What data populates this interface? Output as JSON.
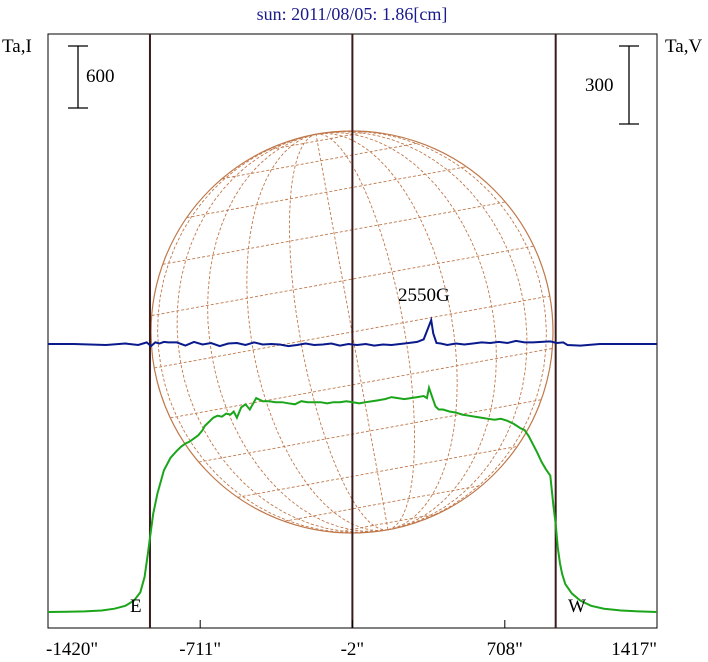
{
  "chart_data": {
    "type": "line",
    "title": "sun: 2011/08/05: 1.86[cm]",
    "left_axis_label": "Ta,I",
    "right_axis_label": "Ta,V",
    "x_unit": "arcsec",
    "x_range": [
      -1420,
      1417
    ],
    "x_ticks": [
      {
        "value": -1420,
        "label": "-1420\""
      },
      {
        "value": -711,
        "label": "-711\""
      },
      {
        "value": -2,
        "label": "-2\""
      },
      {
        "value": 708,
        "label": "708\""
      },
      {
        "value": 1417,
        "label": "1417\""
      }
    ],
    "limb_marks": [
      {
        "x": -945,
        "label": "E"
      },
      {
        "x": 945,
        "label": "W"
      }
    ],
    "center_line_x": -2,
    "scale_bars": [
      {
        "axis": "left",
        "label": "600",
        "value": 600
      },
      {
        "axis": "right",
        "label": "300",
        "value": 300
      }
    ],
    "annotations": [
      {
        "text": "2550G",
        "x": 365,
        "series": "V"
      }
    ],
    "colors": {
      "I": "#1aa51a",
      "V": "#0a1a8c",
      "limb_lines": "#3a1a1a",
      "grid": "#c0784a",
      "title": "#1a1a8c"
    },
    "series": [
      {
        "name": "I",
        "axis": "left",
        "x": [
          -1420,
          -1330,
          -1250,
          -1170,
          -1110,
          -1060,
          -1020,
          -990,
          -970,
          -955,
          -945,
          -930,
          -910,
          -880,
          -850,
          -820,
          -800,
          -780,
          -760,
          -740,
          -720,
          -700,
          -690,
          -670,
          -650,
          -630,
          -610,
          -590,
          -570,
          -555,
          -540,
          -520,
          -500,
          -480,
          -450,
          -420,
          -390,
          -360,
          -330,
          -300,
          -270,
          -240,
          -210,
          -180,
          -150,
          -120,
          -90,
          -60,
          -30,
          0,
          30,
          60,
          90,
          120,
          150,
          180,
          210,
          240,
          270,
          300,
          330,
          345,
          355,
          370,
          385,
          400,
          420,
          450,
          480,
          510,
          540,
          570,
          600,
          630,
          660,
          690,
          720,
          750,
          780,
          800,
          820,
          840,
          860,
          880,
          900,
          920,
          935,
          945,
          955,
          965,
          975,
          990,
          1020,
          1060,
          1110,
          1170,
          1250,
          1330,
          1417
        ],
        "y": [
          0,
          2,
          6,
          15,
          32,
          60,
          110,
          190,
          340,
          560,
          720,
          950,
          1150,
          1370,
          1490,
          1560,
          1600,
          1630,
          1650,
          1680,
          1710,
          1760,
          1800,
          1840,
          1880,
          1900,
          1890,
          1920,
          1910,
          1940,
          1880,
          1980,
          2010,
          1960,
          2070,
          2040,
          2040,
          2030,
          2030,
          2020,
          2010,
          2040,
          2030,
          2030,
          2030,
          2020,
          2030,
          2030,
          2040,
          2030,
          2020,
          2030,
          2040,
          2050,
          2060,
          2080,
          2070,
          2060,
          2070,
          2080,
          2090,
          2070,
          2170,
          2080,
          1990,
          1960,
          1960,
          1940,
          1930,
          1910,
          1900,
          1890,
          1880,
          1870,
          1860,
          1870,
          1850,
          1820,
          1780,
          1760,
          1700,
          1620,
          1540,
          1450,
          1380,
          1320,
          1020,
          850,
          620,
          470,
          370,
          270,
          180,
          110,
          60,
          32,
          15,
          6,
          0
        ]
      },
      {
        "name": "V",
        "axis": "right",
        "x": [
          -1420,
          -1300,
          -1150,
          -1060,
          -1000,
          -960,
          -940,
          -920,
          -900,
          -880,
          -860,
          -820,
          -780,
          -740,
          -700,
          -660,
          -620,
          -580,
          -540,
          -500,
          -460,
          -420,
          -380,
          -340,
          -300,
          -260,
          -220,
          -180,
          -140,
          -100,
          -60,
          -20,
          20,
          60,
          100,
          140,
          180,
          220,
          260,
          300,
          330,
          350,
          365,
          375,
          390,
          410,
          440,
          480,
          520,
          560,
          600,
          640,
          680,
          720,
          760,
          800,
          840,
          880,
          920,
          950,
          980,
          1000,
          1060,
          1150,
          1300,
          1417
        ],
        "y": [
          0,
          0,
          -4,
          2,
          -4,
          6,
          -8,
          6,
          2,
          8,
          6,
          6,
          -6,
          8,
          -2,
          4,
          -8,
          2,
          4,
          -4,
          6,
          -2,
          0,
          -2,
          -8,
          -4,
          2,
          -4,
          -2,
          2,
          -6,
          0,
          -4,
          0,
          -6,
          -2,
          -4,
          0,
          4,
          8,
          18,
          60,
          92,
          40,
          4,
          2,
          -4,
          2,
          -2,
          2,
          6,
          4,
          8,
          4,
          12,
          6,
          6,
          8,
          10,
          4,
          6,
          -4,
          -6,
          0,
          0,
          0
        ]
      }
    ]
  }
}
